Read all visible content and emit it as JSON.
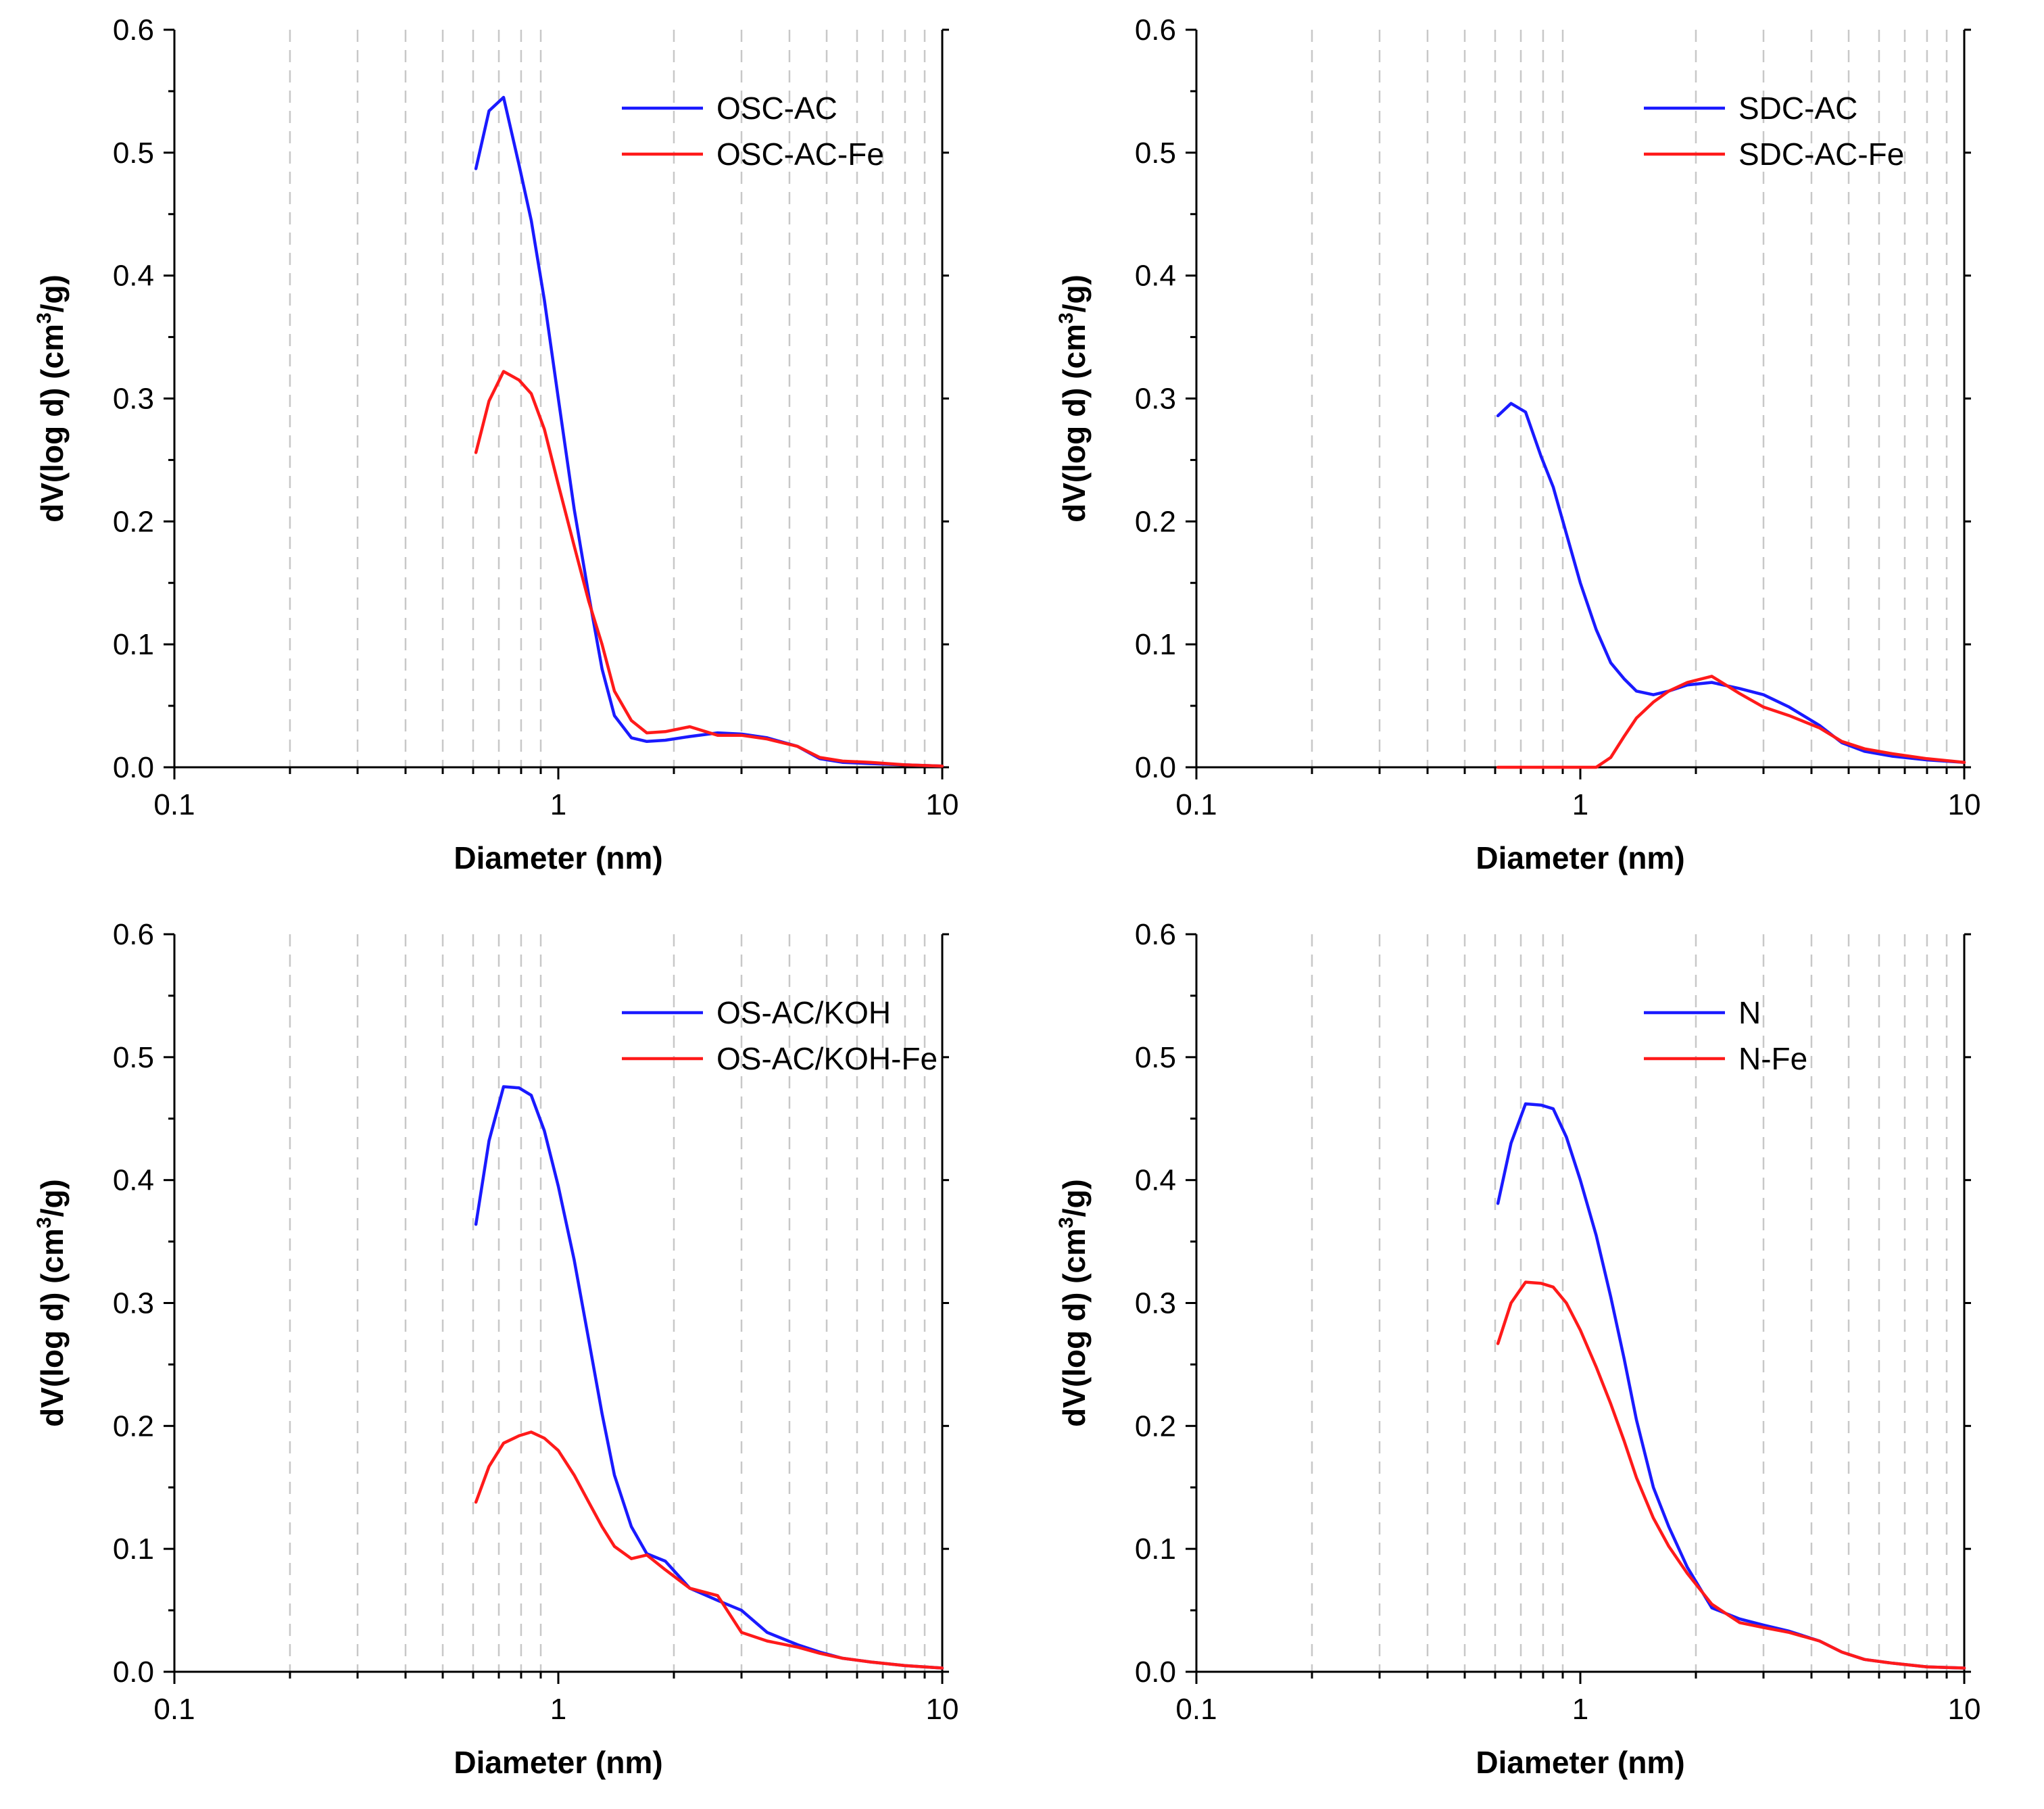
{
  "figure": {
    "colors": {
      "series_1": "#1a1aff",
      "series_2": "#ff1a1a",
      "axis": "#000000",
      "grid": "#c8c8c8"
    }
  },
  "chart_data": [
    {
      "type": "line",
      "xscale": "log",
      "xlabel": "Diameter (nm)",
      "ylabel_main": "dV(log d) (cm",
      "ylabel_sup": "3",
      "ylabel_tail": "/g)",
      "xlim": [
        0.1,
        10
      ],
      "ylim": [
        0,
        0.6
      ],
      "xticks": [
        0.1,
        1,
        10
      ],
      "xtick_labels": [
        "0.1",
        "1",
        "10"
      ],
      "yticks": [
        0,
        0.1,
        0.2,
        0.3,
        0.4,
        0.5,
        0.6
      ],
      "ytick_labels": [
        "0.0",
        "0.1",
        "0.2",
        "0.3",
        "0.4",
        "0.5",
        "0.6"
      ],
      "legend_position": "top-right",
      "series": [
        {
          "name": "OSC-AC",
          "color": "#1a1aff",
          "x": [
            0.61,
            0.66,
            0.72,
            0.79,
            0.85,
            0.92,
            1.0,
            1.1,
            1.2,
            1.3,
            1.4,
            1.55,
            1.7,
            1.9,
            2.2,
            2.6,
            3.0,
            3.5,
            4.2,
            4.8,
            5.5,
            6.5,
            8.0,
            10.0
          ],
          "y": [
            0.487,
            0.534,
            0.545,
            0.49,
            0.445,
            0.38,
            0.3,
            0.21,
            0.14,
            0.08,
            0.042,
            0.024,
            0.021,
            0.022,
            0.025,
            0.028,
            0.027,
            0.024,
            0.017,
            0.007,
            0.004,
            0.003,
            0.002,
            0.001
          ]
        },
        {
          "name": "OSC-AC-Fe",
          "color": "#ff1a1a",
          "x": [
            0.61,
            0.66,
            0.72,
            0.79,
            0.85,
            0.92,
            1.0,
            1.1,
            1.2,
            1.3,
            1.4,
            1.55,
            1.7,
            1.9,
            2.2,
            2.6,
            3.0,
            3.5,
            4.2,
            4.8,
            5.5,
            6.5,
            8.0,
            10.0
          ],
          "y": [
            0.256,
            0.298,
            0.322,
            0.315,
            0.304,
            0.275,
            0.23,
            0.18,
            0.135,
            0.1,
            0.062,
            0.038,
            0.028,
            0.029,
            0.033,
            0.026,
            0.026,
            0.023,
            0.017,
            0.008,
            0.005,
            0.004,
            0.002,
            0.001
          ]
        }
      ]
    },
    {
      "type": "line",
      "xscale": "log",
      "xlabel": "Diameter (nm)",
      "ylabel_main": "dV(log d) (cm",
      "ylabel_sup": "3",
      "ylabel_tail": "/g)",
      "xlim": [
        0.1,
        10
      ],
      "ylim": [
        0,
        0.6
      ],
      "xticks": [
        0.1,
        1,
        10
      ],
      "xtick_labels": [
        "0.1",
        "1",
        "10"
      ],
      "yticks": [
        0,
        0.1,
        0.2,
        0.3,
        0.4,
        0.5,
        0.6
      ],
      "ytick_labels": [
        "0.0",
        "0.1",
        "0.2",
        "0.3",
        "0.4",
        "0.5",
        "0.6"
      ],
      "legend_position": "top-right",
      "series": [
        {
          "name": "SDC-AC",
          "color": "#1a1aff",
          "x": [
            0.61,
            0.66,
            0.72,
            0.79,
            0.85,
            0.92,
            1.0,
            1.1,
            1.2,
            1.3,
            1.4,
            1.55,
            1.7,
            1.9,
            2.2,
            2.6,
            3.0,
            3.5,
            4.2,
            4.8,
            5.5,
            6.5,
            8.0,
            10.0
          ],
          "y": [
            0.286,
            0.296,
            0.289,
            0.253,
            0.228,
            0.19,
            0.15,
            0.112,
            0.085,
            0.072,
            0.062,
            0.059,
            0.062,
            0.067,
            0.069,
            0.064,
            0.059,
            0.049,
            0.034,
            0.02,
            0.013,
            0.009,
            0.006,
            0.004
          ]
        },
        {
          "name": "SDC-AC-Fe",
          "color": "#ff1a1a",
          "x": [
            0.61,
            0.66,
            0.72,
            0.79,
            0.85,
            0.92,
            1.0,
            1.1,
            1.2,
            1.3,
            1.4,
            1.55,
            1.7,
            1.9,
            2.2,
            2.6,
            3.0,
            3.5,
            4.2,
            4.8,
            5.5,
            6.5,
            8.0,
            10.0
          ],
          "y": [
            0.0,
            0.0,
            0.0,
            0.0,
            0.0,
            0.0,
            0.0,
            0.0,
            0.008,
            0.025,
            0.04,
            0.053,
            0.062,
            0.069,
            0.074,
            0.06,
            0.049,
            0.042,
            0.032,
            0.021,
            0.015,
            0.011,
            0.007,
            0.004
          ]
        }
      ]
    },
    {
      "type": "line",
      "xscale": "log",
      "xlabel": "Diameter (nm)",
      "ylabel_main": "dV(log d) (cm",
      "ylabel_sup": "3",
      "ylabel_tail": "/g)",
      "xlim": [
        0.1,
        10
      ],
      "ylim": [
        0,
        0.6
      ],
      "xticks": [
        0.1,
        1,
        10
      ],
      "xtick_labels": [
        "0.1",
        "1",
        "10"
      ],
      "yticks": [
        0,
        0.1,
        0.2,
        0.3,
        0.4,
        0.5,
        0.6
      ],
      "ytick_labels": [
        "0.0",
        "0.1",
        "0.2",
        "0.3",
        "0.4",
        "0.5",
        "0.6"
      ],
      "legend_position": "top-right",
      "series": [
        {
          "name": "OS-AC/KOH",
          "color": "#1a1aff",
          "x": [
            0.61,
            0.66,
            0.72,
            0.79,
            0.85,
            0.92,
            1.0,
            1.1,
            1.2,
            1.3,
            1.4,
            1.55,
            1.7,
            1.9,
            2.2,
            2.6,
            3.0,
            3.5,
            4.2,
            4.8,
            5.5,
            6.5,
            8.0,
            10.0
          ],
          "y": [
            0.364,
            0.432,
            0.476,
            0.475,
            0.469,
            0.44,
            0.395,
            0.335,
            0.27,
            0.21,
            0.16,
            0.118,
            0.096,
            0.09,
            0.068,
            0.058,
            0.05,
            0.032,
            0.022,
            0.016,
            0.011,
            0.008,
            0.005,
            0.003
          ]
        },
        {
          "name": "OS-AC/KOH-Fe",
          "color": "#ff1a1a",
          "x": [
            0.61,
            0.66,
            0.72,
            0.79,
            0.85,
            0.92,
            1.0,
            1.1,
            1.2,
            1.3,
            1.4,
            1.55,
            1.7,
            1.9,
            2.2,
            2.6,
            3.0,
            3.5,
            4.2,
            4.8,
            5.5,
            6.5,
            8.0,
            10.0
          ],
          "y": [
            0.138,
            0.167,
            0.186,
            0.192,
            0.195,
            0.19,
            0.18,
            0.16,
            0.138,
            0.118,
            0.102,
            0.092,
            0.095,
            0.083,
            0.068,
            0.062,
            0.032,
            0.025,
            0.02,
            0.015,
            0.011,
            0.008,
            0.005,
            0.003
          ]
        }
      ]
    },
    {
      "type": "line",
      "xscale": "log",
      "xlabel": "Diameter (nm)",
      "ylabel_main": "dV(log d) (cm",
      "ylabel_sup": "3",
      "ylabel_tail": "/g)",
      "xlim": [
        0.1,
        10
      ],
      "ylim": [
        0,
        0.6
      ],
      "xticks": [
        0.1,
        1,
        10
      ],
      "xtick_labels": [
        "0.1",
        "1",
        "10"
      ],
      "yticks": [
        0,
        0.1,
        0.2,
        0.3,
        0.4,
        0.5,
        0.6
      ],
      "ytick_labels": [
        "0.0",
        "0.1",
        "0.2",
        "0.3",
        "0.4",
        "0.5",
        "0.6"
      ],
      "legend_position": "top-right",
      "series": [
        {
          "name": "N",
          "color": "#1a1aff",
          "x": [
            0.61,
            0.66,
            0.72,
            0.79,
            0.85,
            0.92,
            1.0,
            1.1,
            1.2,
            1.3,
            1.4,
            1.55,
            1.7,
            1.9,
            2.2,
            2.6,
            3.0,
            3.5,
            4.2,
            4.8,
            5.5,
            6.5,
            8.0,
            10.0
          ],
          "y": [
            0.381,
            0.43,
            0.462,
            0.461,
            0.458,
            0.435,
            0.4,
            0.355,
            0.305,
            0.255,
            0.205,
            0.15,
            0.118,
            0.085,
            0.052,
            0.043,
            0.038,
            0.033,
            0.025,
            0.016,
            0.01,
            0.007,
            0.004,
            0.003
          ]
        },
        {
          "name": "N-Fe",
          "color": "#ff1a1a",
          "x": [
            0.61,
            0.66,
            0.72,
            0.79,
            0.85,
            0.92,
            1.0,
            1.1,
            1.2,
            1.3,
            1.4,
            1.55,
            1.7,
            1.9,
            2.2,
            2.6,
            3.0,
            3.5,
            4.2,
            4.8,
            5.5,
            6.5,
            8.0,
            10.0
          ],
          "y": [
            0.267,
            0.3,
            0.317,
            0.316,
            0.313,
            0.3,
            0.278,
            0.248,
            0.218,
            0.188,
            0.158,
            0.125,
            0.102,
            0.08,
            0.055,
            0.04,
            0.036,
            0.032,
            0.025,
            0.016,
            0.01,
            0.007,
            0.004,
            0.003
          ]
        }
      ]
    }
  ]
}
